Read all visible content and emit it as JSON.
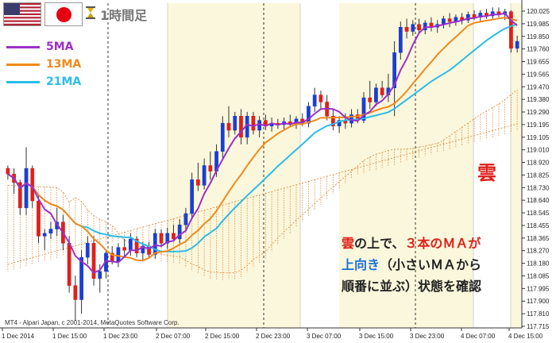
{
  "header": {
    "timeframe_label": "1時間足",
    "hourglass_icon": "hourglass-icon",
    "flags": [
      "us-flag-icon",
      "jp-flag-icon"
    ]
  },
  "legend": [
    {
      "name": "5MA",
      "color": "#9b30c8"
    },
    {
      "name": "13MA",
      "color": "#f08a1c"
    },
    {
      "name": "21MA",
      "color": "#2bbde6"
    }
  ],
  "annotation": {
    "kumo_label": "雲",
    "note_line1_a": "雲",
    "note_line1_b": "の上で、",
    "note_line1_c": "３本のＭＡが",
    "note_line2_a": "上向き",
    "note_line2_b": "（小さいＭＡから",
    "note_line3": "順番に並ぶ）状態を確認"
  },
  "copyright": "MT4 - Alpari Japan, c 2001-2014, MetaQuotes Software Corp.",
  "chart_data": {
    "type": "candlestick",
    "title": "",
    "ylim": [
      117.75,
      120.05
    ],
    "y_ticks": [
      "120.025",
      "119.985",
      "119.850",
      "119.760",
      "119.655",
      "119.565",
      "119.470",
      "119.380",
      "119.290",
      "119.195",
      "119.105",
      "119.010",
      "118.920",
      "118.825",
      "118.730",
      "118.640",
      "118.545",
      "118.455",
      "118.365",
      "118.270",
      "118.180",
      "118.085",
      "117.995",
      "117.900",
      "117.810",
      "117.715"
    ],
    "x_ticks": [
      "1 Dec 2014",
      "1 Dec 15:00",
      "1 Dec 23:00",
      "2 Dec 07:00",
      "2 Dec 15:00",
      "2 Dec 23:00",
      "3 Dec 07:00",
      "3 Dec 15:00",
      "3 Dec 23:00",
      "4 Dec 07:00",
      "4 Dec 15:00"
    ],
    "candles": [
      [
        118.88,
        118.9,
        118.8,
        118.84
      ],
      [
        118.84,
        118.88,
        118.7,
        118.78
      ],
      [
        118.78,
        118.8,
        118.55,
        118.6
      ],
      [
        118.6,
        119.03,
        118.55,
        118.88
      ],
      [
        118.88,
        118.9,
        118.6,
        118.65
      ],
      [
        118.65,
        118.7,
        118.35,
        118.4
      ],
      [
        118.4,
        118.45,
        118.3,
        118.42
      ],
      [
        118.42,
        118.5,
        118.38,
        118.45
      ],
      [
        118.45,
        118.6,
        118.4,
        118.5
      ],
      [
        118.5,
        118.55,
        118.3,
        118.35
      ],
      [
        118.35,
        118.4,
        118.0,
        118.05
      ],
      [
        118.05,
        118.12,
        117.8,
        117.95
      ],
      [
        117.95,
        118.3,
        117.85,
        118.25
      ],
      [
        118.25,
        118.4,
        118.2,
        118.35
      ],
      [
        118.35,
        118.4,
        118.05,
        118.1
      ],
      [
        118.1,
        118.2,
        118.0,
        118.15
      ],
      [
        118.15,
        118.3,
        118.1,
        118.28
      ],
      [
        118.28,
        118.33,
        118.2,
        118.22
      ],
      [
        118.22,
        118.35,
        118.18,
        118.32
      ],
      [
        118.32,
        118.38,
        118.25,
        118.3
      ],
      [
        118.3,
        118.42,
        118.26,
        118.38
      ],
      [
        118.38,
        118.4,
        118.25,
        118.28
      ],
      [
        118.28,
        118.36,
        118.22,
        118.33
      ],
      [
        118.33,
        118.36,
        118.25,
        118.27
      ],
      [
        118.27,
        118.45,
        118.24,
        118.42
      ],
      [
        118.42,
        118.45,
        118.32,
        118.35
      ],
      [
        118.35,
        118.46,
        118.31,
        118.42
      ],
      [
        118.42,
        118.48,
        118.36,
        118.38
      ],
      [
        118.38,
        118.52,
        118.35,
        118.48
      ],
      [
        118.48,
        118.6,
        118.44,
        118.56
      ],
      [
        118.56,
        118.85,
        118.52,
        118.8
      ],
      [
        118.8,
        118.92,
        118.72,
        118.76
      ],
      [
        118.76,
        118.95,
        118.73,
        118.9
      ],
      [
        118.9,
        119.0,
        118.8,
        118.86
      ],
      [
        118.86,
        119.05,
        118.82,
        119.0
      ],
      [
        119.0,
        119.25,
        118.95,
        119.2
      ],
      [
        119.2,
        119.32,
        119.1,
        119.15
      ],
      [
        119.15,
        119.28,
        119.12,
        119.25
      ],
      [
        119.25,
        119.3,
        119.05,
        119.1
      ],
      [
        119.1,
        119.28,
        119.05,
        119.25
      ],
      [
        119.25,
        119.28,
        119.12,
        119.15
      ],
      [
        119.15,
        119.25,
        119.1,
        119.22
      ],
      [
        119.22,
        119.26,
        119.15,
        119.18
      ],
      [
        119.18,
        119.24,
        119.14,
        119.2
      ],
      [
        119.2,
        119.23,
        119.16,
        119.19
      ],
      [
        119.19,
        119.24,
        119.15,
        119.21
      ],
      [
        119.21,
        119.26,
        119.17,
        119.19
      ],
      [
        119.19,
        119.25,
        119.16,
        119.23
      ],
      [
        119.23,
        119.27,
        119.18,
        119.2
      ],
      [
        119.2,
        119.35,
        119.17,
        119.32
      ],
      [
        119.32,
        119.45,
        119.28,
        119.4
      ],
      [
        119.4,
        119.43,
        119.3,
        119.35
      ],
      [
        119.35,
        119.4,
        119.22,
        119.25
      ],
      [
        119.25,
        119.3,
        119.15,
        119.18
      ],
      [
        119.18,
        119.25,
        119.13,
        119.22
      ],
      [
        119.22,
        119.27,
        119.16,
        119.2
      ],
      [
        119.2,
        119.3,
        119.17,
        119.26
      ],
      [
        119.26,
        119.3,
        119.2,
        119.22
      ],
      [
        119.22,
        119.42,
        119.2,
        119.38
      ],
      [
        119.38,
        119.5,
        119.3,
        119.35
      ],
      [
        119.35,
        119.48,
        119.32,
        119.45
      ],
      [
        119.45,
        119.5,
        119.38,
        119.4
      ],
      [
        119.4,
        119.55,
        119.35,
        119.45
      ],
      [
        119.45,
        119.78,
        119.25,
        119.7
      ],
      [
        119.7,
        119.92,
        119.65,
        119.88
      ],
      [
        119.88,
        119.94,
        119.8,
        119.85
      ],
      [
        119.85,
        119.93,
        119.82,
        119.9
      ],
      [
        119.9,
        119.94,
        119.84,
        119.86
      ],
      [
        119.86,
        119.93,
        119.83,
        119.91
      ],
      [
        119.91,
        119.95,
        119.85,
        119.88
      ],
      [
        119.88,
        119.93,
        119.84,
        119.9
      ],
      [
        119.9,
        119.96,
        119.87,
        119.94
      ],
      [
        119.94,
        119.98,
        119.88,
        119.92
      ],
      [
        119.92,
        119.97,
        119.89,
        119.95
      ],
      [
        119.95,
        119.98,
        119.9,
        119.93
      ],
      [
        119.93,
        119.99,
        119.91,
        119.97
      ],
      [
        119.97,
        120.0,
        119.93,
        119.95
      ],
      [
        119.95,
        120.0,
        119.92,
        119.98
      ],
      [
        119.98,
        120.01,
        119.94,
        119.96
      ],
      [
        119.96,
        120.02,
        119.93,
        119.99
      ],
      [
        119.99,
        120.02,
        119.95,
        119.97
      ],
      [
        119.97,
        120.01,
        119.93,
        119.99
      ],
      [
        119.99,
        120.0,
        119.7,
        119.73
      ],
      [
        119.73,
        119.82,
        119.7,
        119.78
      ]
    ]
  },
  "colors": {
    "bull": "#1b3fd1",
    "bear": "#e0201a",
    "session_band": "#fbf7dc",
    "kumo": "#d9893a"
  }
}
